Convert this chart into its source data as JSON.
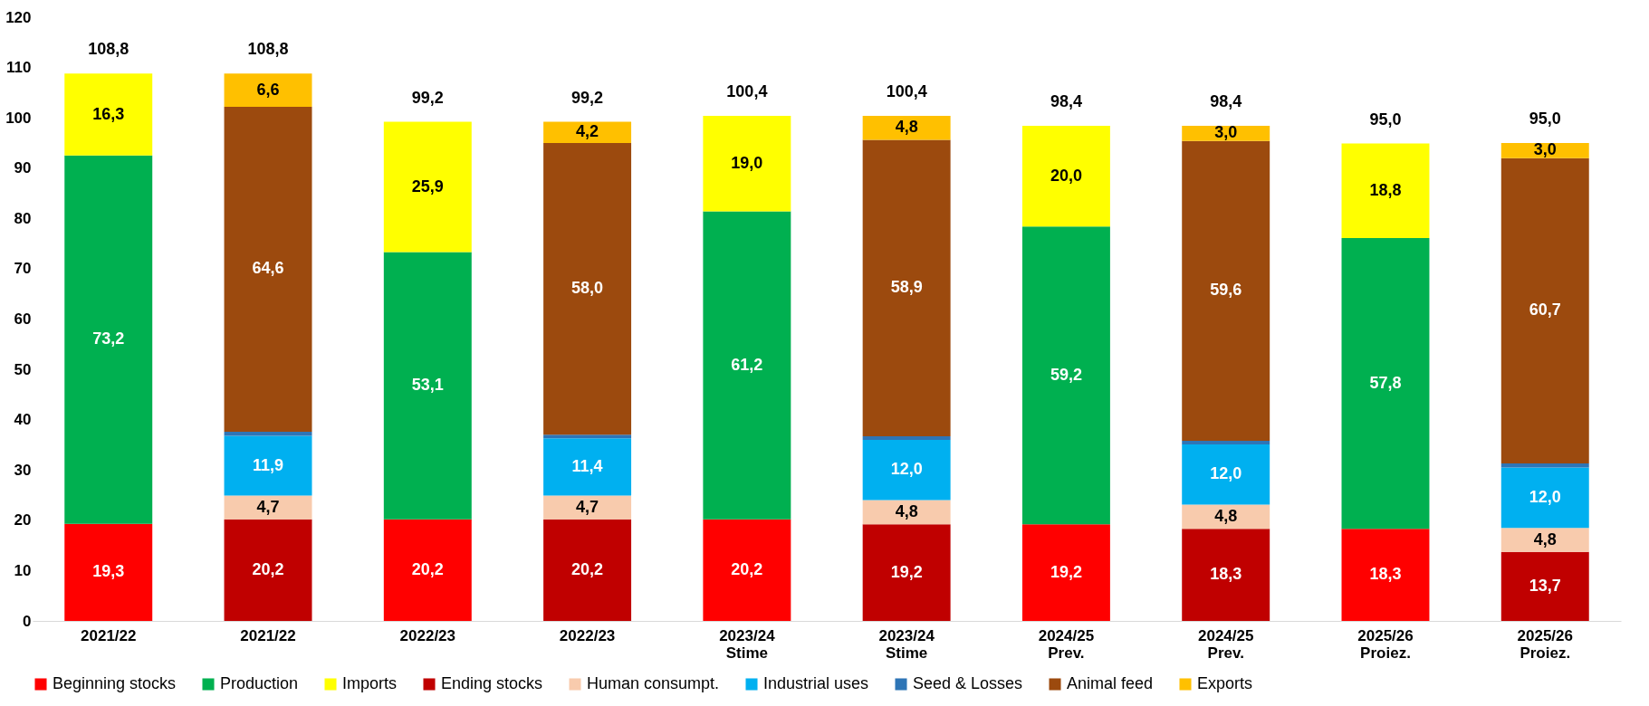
{
  "chart_data": {
    "type": "bar",
    "stacked": true,
    "categories": [
      "2021/22",
      "2021/22",
      "2022/23",
      "2022/23",
      "2023/24\nStime",
      "2023/24\nStime",
      "2024/25\nPrev.",
      "2024/25\nPrev.",
      "2025/26\nProiez.",
      "2025/26\nProiez."
    ],
    "series": [
      {
        "name": "Beginning stocks",
        "color": "#ff0000",
        "values": [
          19.3,
          null,
          20.2,
          null,
          20.2,
          null,
          19.2,
          null,
          18.3,
          null
        ],
        "value_labels": [
          "19,3",
          null,
          "20,2",
          null,
          "20,2",
          null,
          "19,2",
          null,
          "18,3",
          null
        ]
      },
      {
        "name": "Production",
        "color": "#00b050",
        "values": [
          73.2,
          null,
          53.1,
          null,
          61.2,
          null,
          59.2,
          null,
          57.8,
          null
        ],
        "value_labels": [
          "73,2",
          null,
          "53,1",
          null,
          "61,2",
          null,
          "59,2",
          null,
          "57,8",
          null
        ]
      },
      {
        "name": "Imports",
        "color": "#ffff00",
        "values": [
          16.3,
          null,
          25.9,
          null,
          19.0,
          null,
          20.0,
          null,
          18.8,
          null
        ],
        "value_labels": [
          "16,3",
          null,
          "25,9",
          null,
          "19,0",
          null,
          "20,0",
          null,
          "18,8",
          null
        ]
      },
      {
        "name": "Ending stocks",
        "color": "#c00000",
        "values": [
          null,
          20.2,
          null,
          20.2,
          null,
          19.2,
          null,
          18.3,
          null,
          13.7
        ],
        "value_labels": [
          null,
          "20,2",
          null,
          "20,2",
          null,
          "19,2",
          null,
          "18,3",
          null,
          "13,7"
        ]
      },
      {
        "name": "Human consumpt.",
        "color": "#f8cbad",
        "values": [
          null,
          4.7,
          null,
          4.7,
          null,
          4.8,
          null,
          4.8,
          null,
          4.8
        ],
        "value_labels": [
          null,
          "4,7",
          null,
          "4,7",
          null,
          "4,8",
          null,
          "4,8",
          null,
          "4,8"
        ]
      },
      {
        "name": "Industrial uses",
        "color": "#00b0f0",
        "values": [
          null,
          11.9,
          null,
          11.4,
          null,
          12.0,
          null,
          12.0,
          null,
          12.0
        ],
        "value_labels": [
          null,
          "11,9",
          null,
          "11,4",
          null,
          "12,0",
          null,
          "12,0",
          null,
          "12,0"
        ]
      },
      {
        "name": "Seed & Losses",
        "color": "#2e75b6",
        "values": [
          null,
          0.8,
          null,
          0.7,
          null,
          0.7,
          null,
          0.7,
          null,
          0.8
        ]
      },
      {
        "name": "Animal feed",
        "color": "#9c4a0e",
        "values": [
          null,
          64.6,
          null,
          58.0,
          null,
          58.9,
          null,
          59.6,
          null,
          60.7
        ],
        "value_labels": [
          null,
          "64,6",
          null,
          "58,0",
          null,
          "58,9",
          null,
          "59,6",
          null,
          "60,7"
        ]
      },
      {
        "name": "Exports",
        "color": "#ffc000",
        "values": [
          null,
          6.6,
          null,
          4.2,
          null,
          4.8,
          null,
          3.0,
          null,
          3.0
        ],
        "value_labels": [
          null,
          "6,6",
          null,
          "4,2",
          null,
          "4,8",
          null,
          "3,0",
          null,
          "3,0"
        ]
      }
    ],
    "totals": [
      "108,8",
      "108,8",
      "99,2",
      "99,2",
      "100,4",
      "100,4",
      "98,4",
      "98,4",
      "95,0",
      "95,0"
    ],
    "ylim": [
      0,
      120
    ],
    "yticks": [
      0,
      10,
      20,
      30,
      40,
      50,
      60,
      70,
      80,
      90,
      100,
      110,
      120
    ],
    "grid": false,
    "legend": "bottom"
  }
}
